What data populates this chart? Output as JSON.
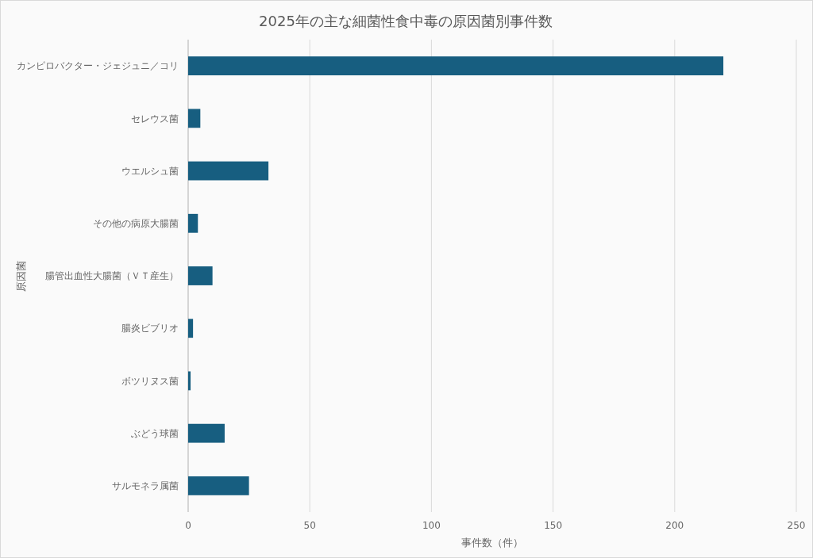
{
  "chart_data": {
    "type": "bar",
    "orientation": "horizontal",
    "title": "2025年の主な細菌性食中毒の原因菌別事件数",
    "xlabel": "事件数（件）",
    "ylabel": "原因菌",
    "categories": [
      "カンピロバクター・ジェジュニ／コリ",
      "セレウス菌",
      "ウエルシュ菌",
      "その他の病原大腸菌",
      "腸管出血性大腸菌（ＶＴ産生）",
      "腸炎ビブリオ",
      "ボツリヌス菌",
      "ぶどう球菌",
      "サルモネラ属菌"
    ],
    "values": [
      220,
      5,
      33,
      4,
      10,
      2,
      1,
      15,
      25
    ],
    "color": "#175e80",
    "xlim": [
      0,
      250
    ],
    "xticks": [
      0,
      50,
      100,
      150,
      200,
      250
    ],
    "grid": "x"
  }
}
